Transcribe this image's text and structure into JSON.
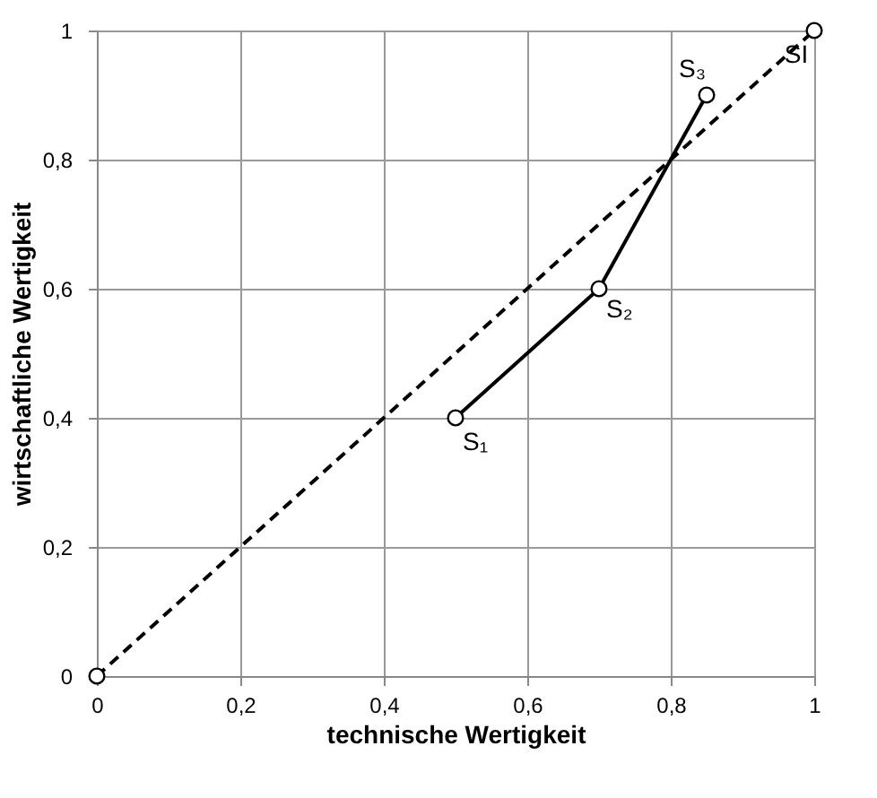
{
  "chart_data": {
    "type": "line",
    "xlabel": "technische Wertigkeit",
    "ylabel": "wirtschaftliche Wertigkeit",
    "xlim": [
      0,
      1
    ],
    "ylim": [
      0,
      1
    ],
    "xticks": [
      0,
      {
        "value": 0.2,
        "label": "0,2"
      },
      {
        "value": 0.4,
        "label": "0,4"
      },
      {
        "value": 0.6,
        "label": "0,6"
      },
      {
        "value": 0.8,
        "label": "0,8"
      },
      1
    ],
    "yticks": [
      0,
      {
        "value": 0.2,
        "label": "0,2"
      },
      {
        "value": 0.4,
        "label": "0,4"
      },
      {
        "value": 0.6,
        "label": "0,6"
      },
      {
        "value": 0.8,
        "label": "0,8"
      },
      1
    ],
    "grid": true,
    "marker": "circle",
    "series": [
      {
        "x": [
          0.5,
          0.7,
          0.85
        ],
        "values": [
          0.4,
          0.6,
          0.9
        ],
        "color": "#000000",
        "line_style": "solid"
      },
      {
        "x": [
          0,
          1
        ],
        "values": [
          0,
          1
        ],
        "color": "#000000",
        "line_style": "dashed"
      }
    ],
    "annotations": [
      {
        "text": "S₁",
        "x": 0.5,
        "y": 0.4
      },
      {
        "text": "S₂",
        "x": 0.7,
        "y": 0.6
      },
      {
        "text": "S₃",
        "x": 0.85,
        "y": 0.9
      },
      {
        "text": "SI",
        "x": 1,
        "y": 1
      }
    ]
  }
}
